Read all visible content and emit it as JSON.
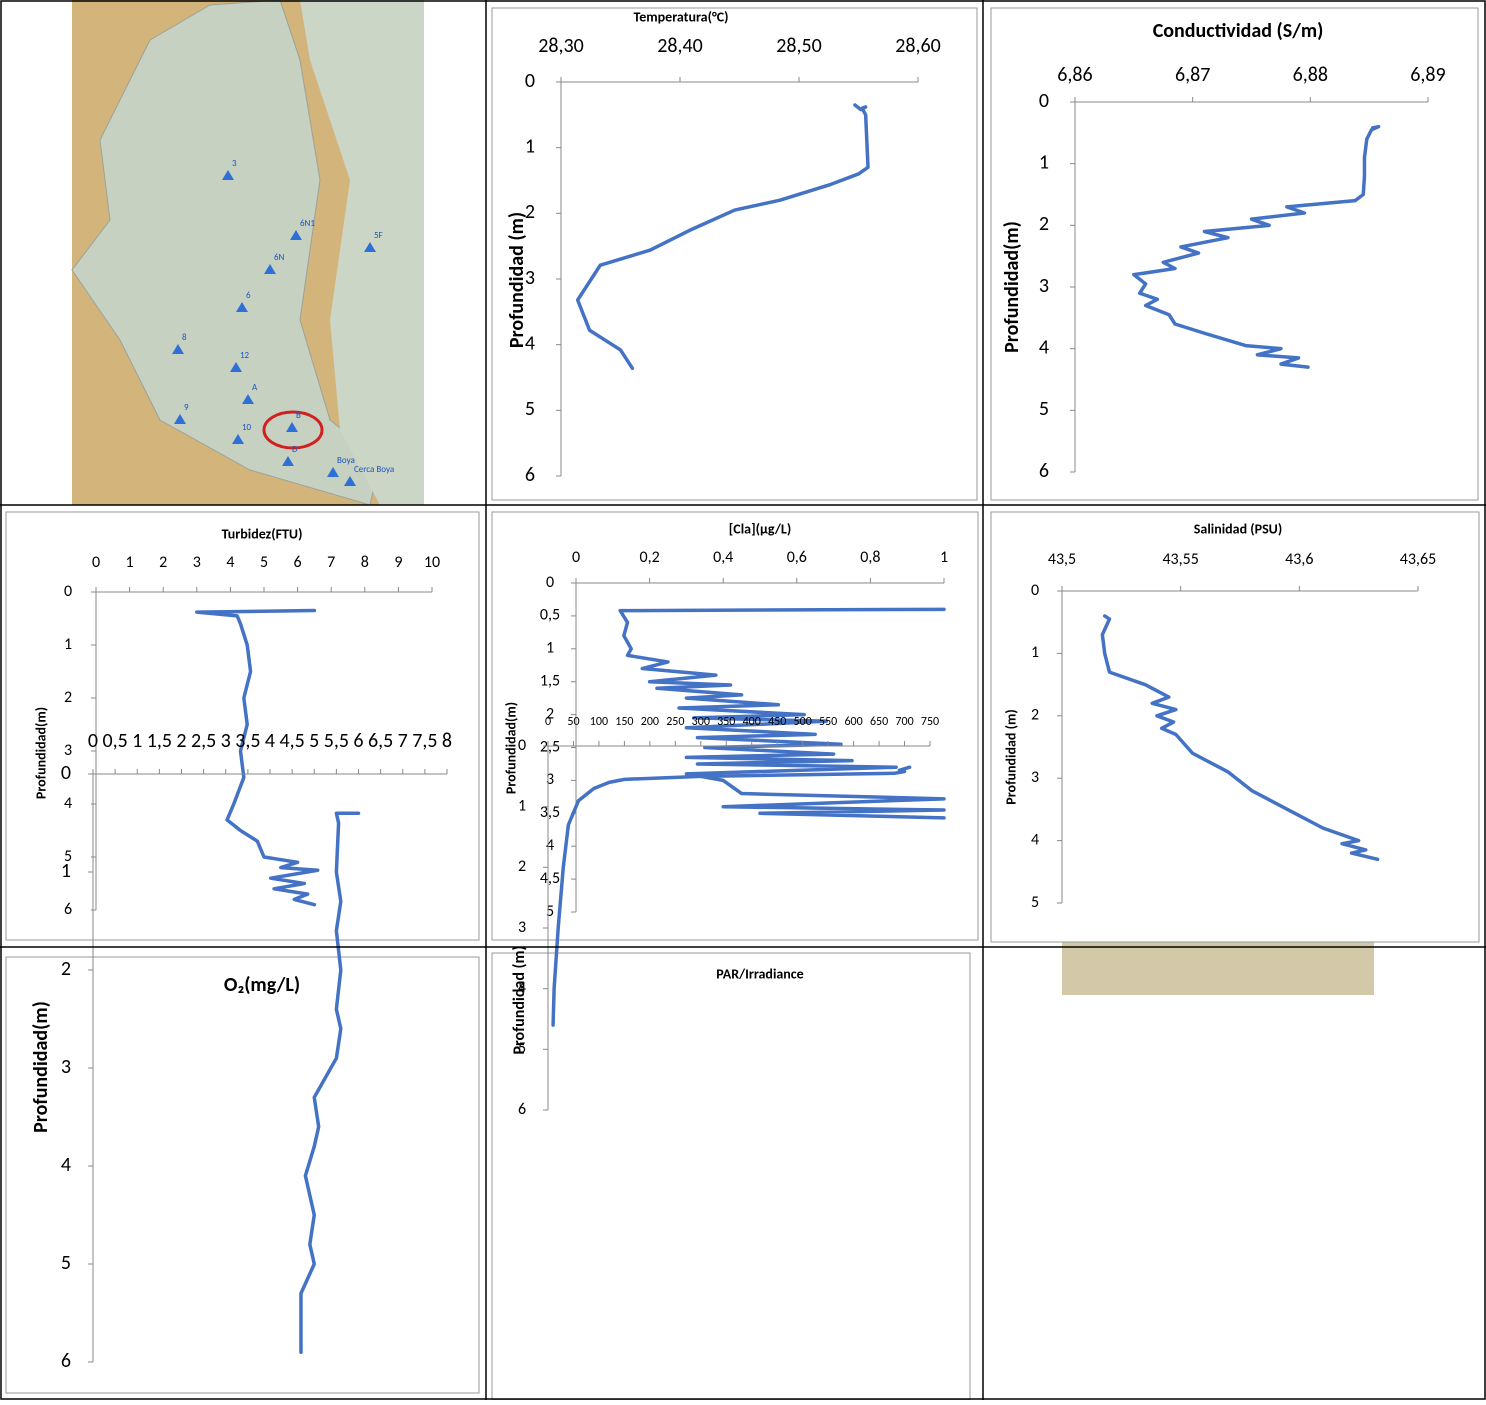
{
  "map": {
    "labels": [
      "3",
      "6N1",
      "6N",
      "5F",
      "6",
      "8",
      "12",
      "A",
      "9",
      "10",
      "B",
      "D",
      "Boya",
      "Cerca Boya"
    ]
  },
  "chart_data": [
    {
      "type": "line",
      "title": "Temperatura(°C)",
      "ylabel": "Profundidad (m)",
      "color": "#4472c4",
      "y_inverted": true,
      "xlim": [
        28.3,
        28.6
      ],
      "xticks": [
        {
          "value": 28.3,
          "label": "28,30"
        },
        {
          "value": 28.4,
          "label": "28,40"
        },
        {
          "value": 28.5,
          "label": "28,50"
        },
        {
          "value": 28.6,
          "label": "28,60"
        }
      ],
      "ylim": [
        0,
        6
      ],
      "yticks": [
        0,
        1,
        2,
        3,
        4,
        5,
        6
      ],
      "x": [
        28.547,
        28.552,
        28.556,
        28.553,
        28.556,
        28.558,
        28.55,
        28.525,
        28.484,
        28.446,
        28.408,
        28.375,
        28.333,
        28.314,
        28.324,
        28.35,
        28.36
      ],
      "values": [
        0.35,
        0.42,
        0.38,
        0.4,
        0.5,
        1.3,
        1.4,
        1.57,
        1.8,
        1.95,
        2.26,
        2.56,
        2.79,
        3.32,
        3.78,
        4.08,
        4.36
      ]
    },
    {
      "type": "line",
      "title": "Conductividad (S/m)",
      "ylabel": "Profundidad(m)",
      "color": "#4472c4",
      "y_inverted": true,
      "xlim": [
        6.86,
        6.89
      ],
      "xticks": [
        {
          "value": 6.86,
          "label": "6,86"
        },
        {
          "value": 6.87,
          "label": "6,87"
        },
        {
          "value": 6.88,
          "label": "6,88"
        },
        {
          "value": 6.89,
          "label": "6,89"
        }
      ],
      "ylim": [
        0,
        6
      ],
      "yticks": [
        0,
        1,
        2,
        3,
        4,
        5,
        6
      ],
      "x": [
        6.8853,
        6.8858,
        6.8852,
        6.8848,
        6.8846,
        6.8846,
        6.8845,
        6.8838,
        6.878,
        6.8795,
        6.875,
        6.8765,
        6.871,
        6.873,
        6.869,
        6.8705,
        6.8675,
        6.8685,
        6.865,
        6.866,
        6.8655,
        6.867,
        6.866,
        6.868,
        6.8685,
        6.871,
        6.8745,
        6.8775,
        6.8755,
        6.879,
        6.8775,
        6.8798
      ],
      "values": [
        0.42,
        0.4,
        0.45,
        0.6,
        0.9,
        1.2,
        1.5,
        1.6,
        1.7,
        1.8,
        1.9,
        2.0,
        2.1,
        2.2,
        2.35,
        2.45,
        2.6,
        2.7,
        2.8,
        2.95,
        3.1,
        3.2,
        3.3,
        3.45,
        3.6,
        3.75,
        3.95,
        4.0,
        4.1,
        4.15,
        4.25,
        4.3
      ]
    },
    {
      "type": "line",
      "title": "Turbidez(FTU)",
      "ylabel": "Profundidad(m)",
      "color": "#4472c4",
      "y_inverted": true,
      "xlim": [
        0,
        10
      ],
      "xticks": [
        0,
        1,
        2,
        3,
        4,
        5,
        6,
        7,
        8,
        9,
        10
      ],
      "ylim": [
        0,
        6
      ],
      "yticks": [
        0,
        1,
        2,
        3,
        4,
        5,
        6
      ],
      "x": [
        6.5,
        3.0,
        4.2,
        4.3,
        4.5,
        4.6,
        4.4,
        4.5,
        4.3,
        4.4,
        4.1,
        3.9,
        4.3,
        4.8,
        5.0,
        6.0,
        5.5,
        6.6,
        5.2,
        6.2,
        5.3,
        6.3,
        5.9,
        6.5
      ],
      "values": [
        0.35,
        0.38,
        0.45,
        0.6,
        1.0,
        1.5,
        2.0,
        2.5,
        3.0,
        3.5,
        4.0,
        4.3,
        4.5,
        4.7,
        5.0,
        5.1,
        5.2,
        5.25,
        5.4,
        5.5,
        5.6,
        5.7,
        5.8,
        5.9
      ]
    },
    {
      "type": "line",
      "title": "[Cla](μg/L)",
      "ylabel": "Profundidad(m)",
      "color": "#4472c4",
      "y_inverted": true,
      "xlim": [
        0,
        1
      ],
      "xticks": [
        0,
        {
          "value": 0.2,
          "label": "0,2"
        },
        {
          "value": 0.4,
          "label": "0,4"
        },
        {
          "value": 0.6,
          "label": "0,6"
        },
        {
          "value": 0.8,
          "label": "0,8"
        },
        1
      ],
      "ylim": [
        0,
        5
      ],
      "yticks": [
        0,
        {
          "value": 0.5,
          "label": "0,5"
        },
        1,
        {
          "value": 1.5,
          "label": "1,5"
        },
        2,
        {
          "value": 2.5,
          "label": "2,5"
        },
        3,
        {
          "value": 3.5,
          "label": "3,5"
        },
        4,
        {
          "value": 4.5,
          "label": "4,5"
        },
        5
      ],
      "x": [
        1.0,
        0.12,
        0.14,
        0.13,
        0.15,
        0.14,
        0.25,
        0.18,
        0.38,
        0.2,
        0.42,
        0.22,
        0.45,
        0.3,
        0.55,
        0.28,
        0.62,
        0.32,
        0.68,
        0.3,
        0.65,
        0.33,
        0.72,
        0.35,
        0.7,
        0.3,
        0.75,
        0.33,
        0.87,
        0.3,
        0.4,
        0.45,
        1.0,
        0.4,
        1.0,
        0.5,
        1.0
      ],
      "values": [
        0.4,
        0.42,
        0.6,
        0.8,
        1.0,
        1.1,
        1.2,
        1.3,
        1.4,
        1.5,
        1.55,
        1.6,
        1.7,
        1.75,
        1.85,
        1.9,
        2.0,
        2.05,
        2.1,
        2.2,
        2.3,
        2.35,
        2.45,
        2.5,
        2.6,
        2.65,
        2.7,
        2.75,
        2.8,
        2.9,
        3.0,
        3.2,
        3.28,
        3.4,
        3.45,
        3.5,
        3.57
      ]
    },
    {
      "type": "line",
      "title": "Salinidad (PSU)",
      "ylabel": "Profundidad (m)",
      "color": "#4472c4",
      "y_inverted": true,
      "xlim": [
        43.5,
        43.65
      ],
      "xticks": [
        {
          "value": 43.5,
          "label": "43,5"
        },
        {
          "value": 43.55,
          "label": "43,55"
        },
        {
          "value": 43.6,
          "label": "43,6"
        },
        {
          "value": 43.65,
          "label": "43,65"
        }
      ],
      "ylim": [
        0,
        5
      ],
      "yticks": [
        0,
        1,
        2,
        3,
        4,
        5
      ],
      "x": [
        43.518,
        43.52,
        43.517,
        43.518,
        43.52,
        43.535,
        43.545,
        43.538,
        43.548,
        43.54,
        43.547,
        43.542,
        43.548,
        43.555,
        43.57,
        43.58,
        43.595,
        43.61,
        43.625,
        43.618,
        43.628,
        43.622,
        43.633
      ],
      "values": [
        0.4,
        0.45,
        0.7,
        1.0,
        1.3,
        1.5,
        1.7,
        1.8,
        1.9,
        2.0,
        2.1,
        2.2,
        2.3,
        2.6,
        2.9,
        3.2,
        3.5,
        3.8,
        4.0,
        4.05,
        4.15,
        4.2,
        4.3
      ]
    },
    {
      "type": "line",
      "title": "O₂(mg/L)",
      "ylabel": "Profundidad(m)",
      "color": "#4472c4",
      "y_inverted": true,
      "xlim": [
        0,
        8
      ],
      "xticks": [
        0,
        {
          "value": 0.5,
          "label": "0,5"
        },
        1,
        {
          "value": 1.5,
          "label": "1,5"
        },
        2,
        {
          "value": 2.5,
          "label": "2,5"
        },
        3,
        {
          "value": 3.5,
          "label": "3,5"
        },
        4,
        {
          "value": 4.5,
          "label": "4,5"
        },
        5,
        {
          "value": 5.5,
          "label": "5,5"
        },
        6,
        {
          "value": 6.5,
          "label": "6,5"
        },
        7,
        {
          "value": 7.5,
          "label": "7,5"
        },
        8
      ],
      "ylim": [
        0,
        6
      ],
      "yticks": [
        0,
        1,
        2,
        3,
        4,
        5,
        6
      ],
      "x": [
        6.0,
        5.5,
        5.55,
        5.5,
        5.6,
        5.5,
        5.6,
        5.5,
        5.6,
        5.5,
        5.0,
        5.1,
        5.0,
        4.8,
        5.0,
        4.9,
        5.0,
        4.7,
        4.7
      ],
      "values": [
        0.4,
        0.4,
        0.5,
        1.0,
        1.3,
        1.6,
        2.0,
        2.4,
        2.6,
        2.9,
        3.3,
        3.6,
        3.8,
        4.1,
        4.5,
        4.8,
        5.0,
        5.3,
        5.9
      ]
    },
    {
      "type": "line",
      "title": "PAR/Irradiance",
      "ylabel": "Profundidad (m)",
      "color": "#4472c4",
      "y_inverted": true,
      "xlim": [
        0,
        750
      ],
      "xticks": [
        0,
        50,
        100,
        150,
        200,
        250,
        300,
        350,
        400,
        450,
        500,
        550,
        600,
        650,
        700,
        750
      ],
      "ylim": [
        0,
        6
      ],
      "yticks": [
        0,
        1,
        2,
        3,
        4,
        5,
        6
      ],
      "x": [
        710,
        690,
        700,
        680,
        300,
        150,
        120,
        90,
        60,
        40,
        30,
        20,
        12,
        10
      ],
      "values": [
        0.35,
        0.4,
        0.42,
        0.45,
        0.5,
        0.55,
        0.6,
        0.7,
        0.9,
        1.3,
        2.0,
        3.0,
        4.0,
        4.6
      ]
    }
  ]
}
